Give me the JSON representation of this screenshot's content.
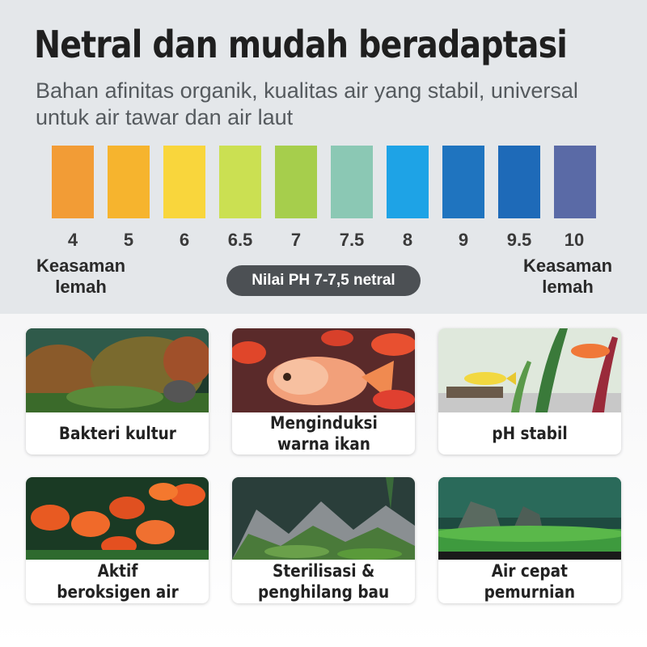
{
  "header": {
    "title": "Netral dan mudah beradaptasi",
    "subtitle": "Bahan afinitas organik, kualitas air yang stabil, universal untuk air tawar dan air laut"
  },
  "ph_scale": {
    "swatches": [
      {
        "label": "4",
        "color": "#f29c36"
      },
      {
        "label": "5",
        "color": "#f6b42e"
      },
      {
        "label": "6",
        "color": "#f9d63c"
      },
      {
        "label": "6.5",
        "color": "#cbe052"
      },
      {
        "label": "7",
        "color": "#a6ce4c"
      },
      {
        "label": "7.5",
        "color": "#8bc8b4"
      },
      {
        "label": "8",
        "color": "#1ea3e6"
      },
      {
        "label": "9",
        "color": "#1f74bf"
      },
      {
        "label": "9.5",
        "color": "#1e6ab8"
      },
      {
        "label": "10",
        "color": "#5a6aa6"
      }
    ],
    "left_note": "Keasaman\nlemah",
    "right_note": "Keasaman\nlemah",
    "neutral_label": "Nilai PH 7-7,5 netral"
  },
  "features": [
    {
      "caption": "Bakteri kultur",
      "image": "aquascape-plants"
    },
    {
      "caption": "Menginduksi\nwarna ikan",
      "image": "orange-cichlid-fish"
    },
    {
      "caption": "pH stabil",
      "image": "yellow-fish-aquarium"
    },
    {
      "caption": "Aktif\nberoksigen air",
      "image": "red-parrot-fish-school"
    },
    {
      "caption": "Sterilisasi &\npenghilang bau",
      "image": "rock-aquascape"
    },
    {
      "caption": "Air cepat\npemurnian",
      "image": "green-carpet-aquascape"
    }
  ],
  "colors": {
    "pill_bg": "#4c5054",
    "header_bg": "#e4e7ea"
  }
}
